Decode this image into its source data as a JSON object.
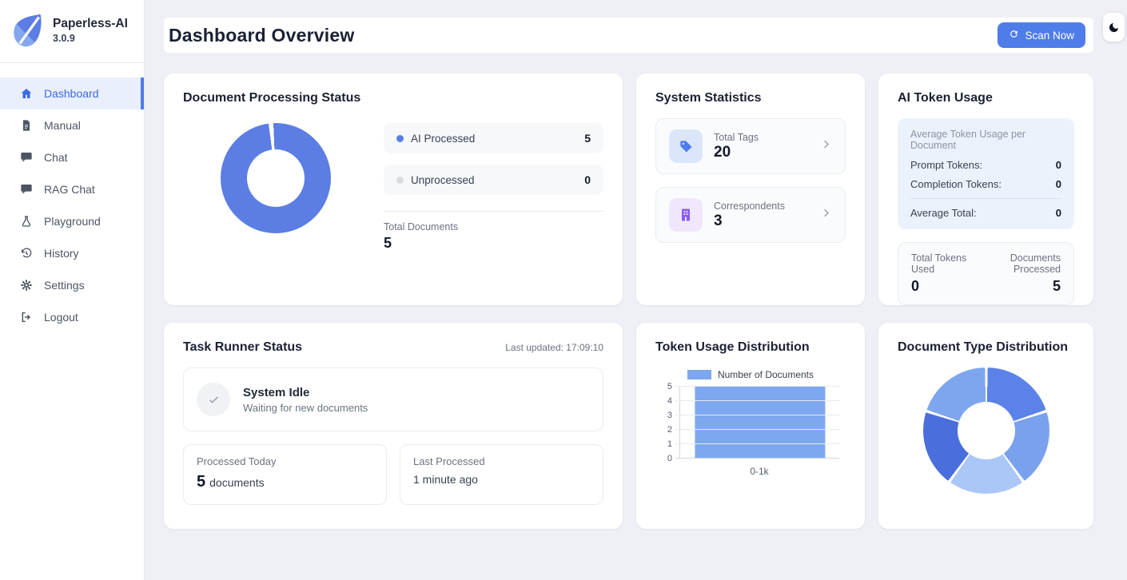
{
  "app": {
    "name": "Paperless-AI",
    "version": "3.0.9"
  },
  "sidebar": {
    "items": [
      {
        "label": "Dashboard",
        "icon": "home-icon",
        "active": true
      },
      {
        "label": "Manual",
        "icon": "document-icon",
        "active": false
      },
      {
        "label": "Chat",
        "icon": "chat-icon",
        "active": false
      },
      {
        "label": "RAG Chat",
        "icon": "chat-icon",
        "active": false
      },
      {
        "label": "Playground",
        "icon": "flask-icon",
        "active": false
      },
      {
        "label": "History",
        "icon": "history-icon",
        "active": false
      },
      {
        "label": "Settings",
        "icon": "gear-icon",
        "active": false
      },
      {
        "label": "Logout",
        "icon": "logout-icon",
        "active": false
      }
    ]
  },
  "header": {
    "title": "Dashboard Overview",
    "scan_button_label": "Scan Now"
  },
  "theme": {
    "accent": "#4e7ce8",
    "donut_blue": "#5b7de4",
    "bar_blue": "#7da7ef",
    "unprocessed_gray": "#d9dce1"
  },
  "cards": {
    "processing": {
      "title": "Document Processing Status",
      "legend": [
        {
          "label": "AI Processed",
          "value": "5",
          "color": "#5b7de4"
        },
        {
          "label": "Unprocessed",
          "value": "0",
          "color": "#d9dce1"
        }
      ],
      "total_label": "Total Documents",
      "total_value": "5"
    },
    "stats": {
      "title": "System Statistics",
      "items": [
        {
          "label": "Total Tags",
          "value": "20",
          "icon": "tag-icon"
        },
        {
          "label": "Correspondents",
          "value": "3",
          "icon": "building-icon"
        }
      ]
    },
    "tokens": {
      "title": "AI Token Usage",
      "avg_panel": {
        "header": "Average Token Usage per Document",
        "rows": [
          {
            "label": "Prompt Tokens:",
            "value": "0"
          },
          {
            "label": "Completion Tokens:",
            "value": "0"
          }
        ],
        "total_row": {
          "label": "Average Total:",
          "value": "0"
        }
      },
      "totals_panel": {
        "left_label": "Total Tokens Used",
        "left_value": "0",
        "right_label": "Documents Processed",
        "right_value": "5"
      }
    },
    "task_runner": {
      "title": "Task Runner Status",
      "last_updated": "Last updated: 17:09:10",
      "status_title": "System Idle",
      "status_subtitle": "Waiting for new documents",
      "processed_today": {
        "label": "Processed Today",
        "value": "5",
        "unit": "documents"
      },
      "last_processed": {
        "label": "Last Processed",
        "value": "1 minute ago"
      }
    },
    "token_distribution": {
      "title": "Token Usage Distribution"
    },
    "doc_type": {
      "title": "Document Type Distribution"
    }
  },
  "chart_data": [
    {
      "id": "processing-donut",
      "type": "pie",
      "subtype": "donut",
      "title": "Document Processing Status",
      "labels": [
        "AI Processed",
        "Unprocessed"
      ],
      "values": [
        5,
        0
      ],
      "colors": [
        "#5b7de4",
        "#d9dce1"
      ],
      "total_label": "Total Documents",
      "total": 5,
      "start_deg": -5,
      "gap_deg": 5,
      "legend_position": "right"
    },
    {
      "id": "token-usage-bar",
      "type": "bar",
      "title": "Token Usage Distribution",
      "categories": [
        "0-1k"
      ],
      "series": [
        {
          "name": "Number of Documents",
          "values": [
            5
          ],
          "color": "#7da7ef"
        }
      ],
      "xlabel": "",
      "ylabel": "",
      "ylim": [
        0,
        5
      ],
      "yticks": [
        0,
        1,
        2,
        3,
        4,
        5
      ],
      "grid": true,
      "legend_position": "top"
    },
    {
      "id": "doctype-donut",
      "type": "pie",
      "subtype": "donut",
      "title": "Document Type Distribution",
      "labels_visible": false,
      "values": [
        1,
        1,
        1,
        1,
        1
      ],
      "shares_pct": [
        20,
        20,
        20,
        20,
        20
      ],
      "colors": [
        "#5b82e8",
        "#79a1ed",
        "#abc7f8",
        "#4a6fdc",
        "#7ea6ef"
      ],
      "start_deg": 0,
      "gap_deg": 2.6,
      "legend_position": "none"
    }
  ]
}
